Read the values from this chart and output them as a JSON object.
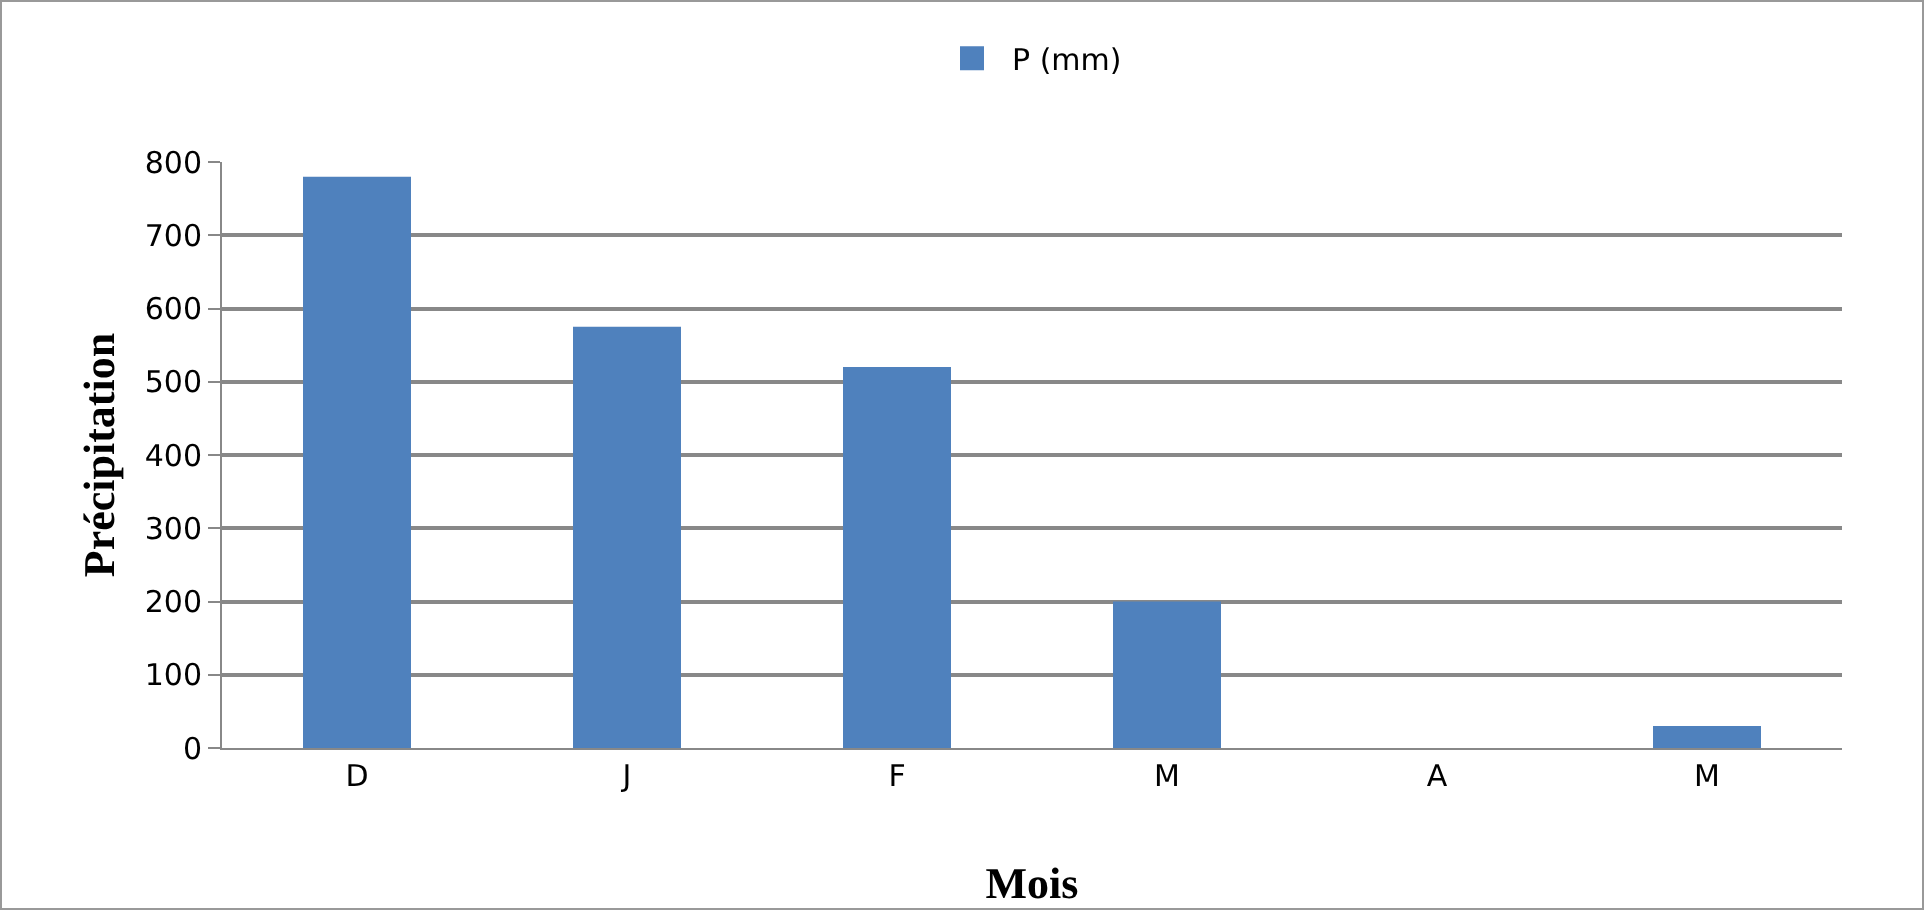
{
  "chart_data": {
    "type": "bar",
    "xlabel": "Mois",
    "ylabel": "Précipitation",
    "categories": [
      "D",
      "J",
      "F",
      "M",
      "A",
      "M"
    ],
    "series": [
      {
        "name": "P (mm)",
        "color": "#4f81bd",
        "values": [
          780,
          575,
          520,
          200,
          0,
          30
        ]
      }
    ],
    "ylim": [
      0,
      800
    ],
    "yticks": [
      0,
      100,
      200,
      300,
      400,
      500,
      600,
      700,
      800
    ],
    "grid": "y",
    "legend": "top"
  }
}
